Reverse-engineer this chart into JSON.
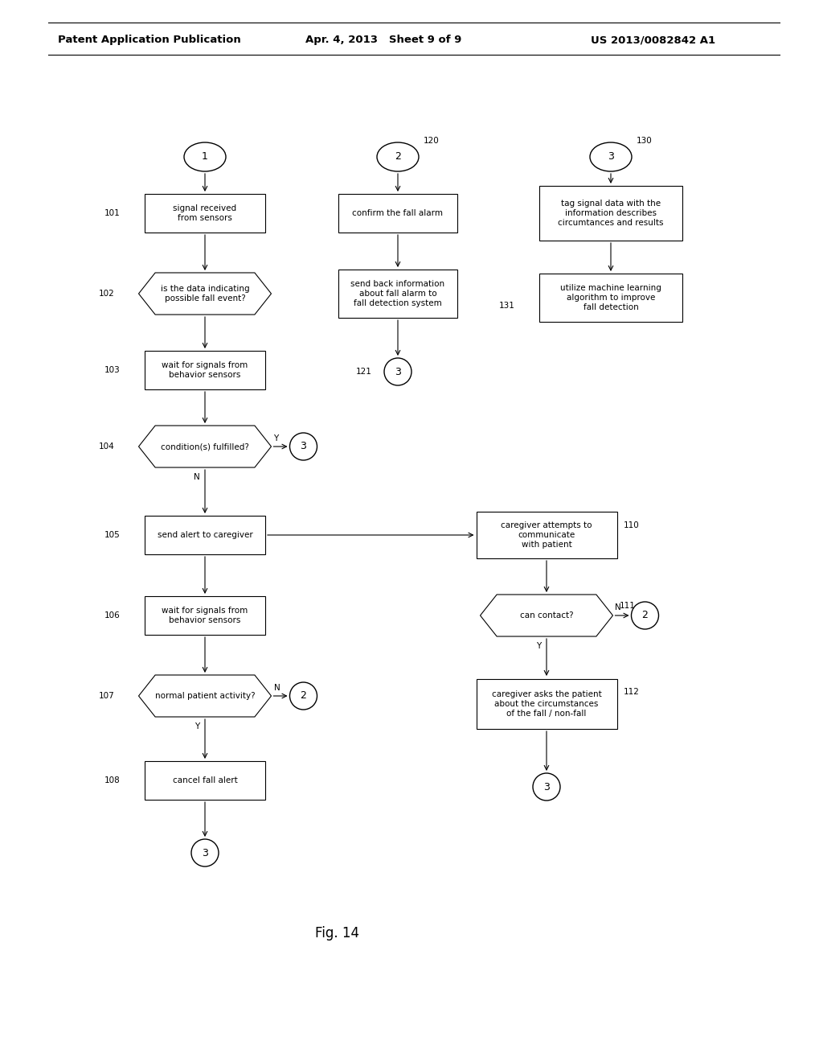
{
  "title_left": "Patent Application Publication",
  "title_center": "Apr. 4, 2013   Sheet 9 of 9",
  "title_right": "US 2013/0082842 A1",
  "fig_label": "Fig. 14",
  "background": "#ffffff",
  "line_color": "#000000"
}
